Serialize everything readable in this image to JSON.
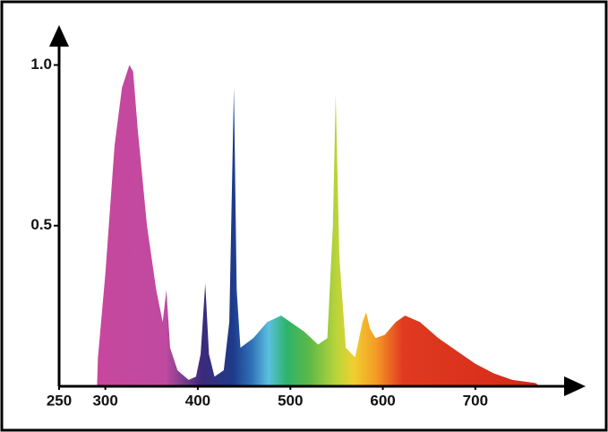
{
  "chart_data": {
    "type": "area",
    "x": [
      291,
      292,
      300,
      310,
      318,
      326,
      330,
      335,
      345,
      355,
      362,
      366,
      370,
      378,
      390,
      398,
      403,
      408,
      412,
      418,
      428,
      434,
      439,
      442,
      446,
      460,
      475,
      490,
      500,
      515,
      530,
      540,
      546,
      549,
      553,
      560,
      570,
      578,
      582,
      586,
      592,
      602,
      614,
      624,
      640,
      660,
      680,
      700,
      720,
      740,
      765,
      770
    ],
    "values": [
      0,
      0.09,
      0.35,
      0.75,
      0.93,
      1.0,
      0.98,
      0.8,
      0.5,
      0.3,
      0.2,
      0.3,
      0.12,
      0.05,
      0.02,
      0.03,
      0.1,
      0.32,
      0.1,
      0.03,
      0.05,
      0.2,
      0.93,
      0.3,
      0.12,
      0.15,
      0.2,
      0.22,
      0.2,
      0.17,
      0.13,
      0.15,
      0.5,
      0.91,
      0.4,
      0.12,
      0.09,
      0.2,
      0.23,
      0.18,
      0.15,
      0.16,
      0.2,
      0.22,
      0.2,
      0.15,
      0.11,
      0.07,
      0.04,
      0.02,
      0.01,
      0
    ],
    "xlim": [
      250,
      810
    ],
    "ylim": [
      0,
      1.12
    ],
    "xticks": [
      250,
      300,
      400,
      500,
      600,
      700
    ],
    "yticks": [
      0.5,
      {
        "value": 1,
        "label": "1.0"
      }
    ]
  }
}
